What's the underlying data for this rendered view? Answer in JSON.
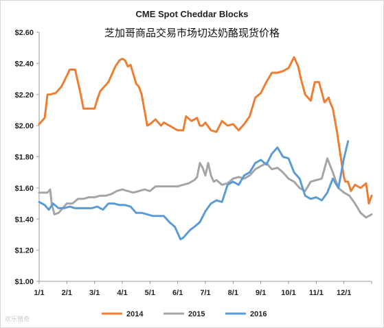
{
  "chart_data": {
    "type": "line",
    "title": "CME Spot Cheddar Blocks",
    "subtitle": "芝加哥商品交易市场切达奶酪现货价格",
    "xlabel": "",
    "ylabel": "",
    "ylim": [
      1.0,
      2.6
    ],
    "yticks": [
      "$1.00",
      "$1.20",
      "$1.40",
      "$1.60",
      "$1.80",
      "$2.00",
      "$2.20",
      "$2.40",
      "$2.60"
    ],
    "ytick_values": [
      1.0,
      1.2,
      1.4,
      1.6,
      1.8,
      2.0,
      2.2,
      2.4,
      2.6
    ],
    "xlim": [
      0,
      12
    ],
    "xticks": [
      "1/1",
      "2/1",
      "3/1",
      "4/1",
      "5/1",
      "6/1",
      "7/1",
      "8/1",
      "9/1",
      "10/1",
      "11/1",
      "12/1"
    ],
    "grid": false,
    "legend_position": "bottom",
    "series": [
      {
        "name": "2014",
        "color": "#ED7D31",
        "x": [
          0,
          0.1,
          0.2,
          0.3,
          0.4,
          0.6,
          0.8,
          1.0,
          1.1,
          1.2,
          1.3,
          1.5,
          1.6,
          1.8,
          2.0,
          2.1,
          2.2,
          2.35,
          2.5,
          2.6,
          2.75,
          2.9,
          3.0,
          3.1,
          3.2,
          3.3,
          3.5,
          3.6,
          3.7,
          3.8,
          3.9,
          4.0,
          4.2,
          4.4,
          4.5,
          4.7,
          4.9,
          5.0,
          5.2,
          5.3,
          5.5,
          5.7,
          5.8,
          5.9,
          6.0,
          6.2,
          6.4,
          6.6,
          6.8,
          7.0,
          7.2,
          7.4,
          7.6,
          7.8,
          8.0,
          8.2,
          8.4,
          8.6,
          8.8,
          9.0,
          9.2,
          9.35,
          9.45,
          9.6,
          9.8,
          9.95,
          10.1,
          10.3,
          10.45,
          10.5,
          10.6,
          10.75,
          10.9,
          11.0,
          11.05,
          11.15,
          11.25,
          11.4,
          11.6,
          11.8,
          11.9,
          12.0
        ],
        "values": [
          2.01,
          2.03,
          2.05,
          2.2,
          2.2,
          2.21,
          2.25,
          2.32,
          2.36,
          2.36,
          2.36,
          2.2,
          2.11,
          2.11,
          2.11,
          2.17,
          2.22,
          2.25,
          2.28,
          2.32,
          2.38,
          2.42,
          2.43,
          2.42,
          2.38,
          2.39,
          2.27,
          2.25,
          2.2,
          2.1,
          2.0,
          2.01,
          2.04,
          2.0,
          2.02,
          2.0,
          1.98,
          1.97,
          1.97,
          2.06,
          2.03,
          2.05,
          2.0,
          2.0,
          2.02,
          1.97,
          1.96,
          2.03,
          2.0,
          2.01,
          1.97,
          2.01,
          2.06,
          2.18,
          2.21,
          2.28,
          2.34,
          2.34,
          2.35,
          2.37,
          2.44,
          2.38,
          2.3,
          2.2,
          2.16,
          2.28,
          2.28,
          2.15,
          2.18,
          2.15,
          2.11,
          1.96,
          1.78,
          1.67,
          1.64,
          1.64,
          1.58,
          1.62,
          1.6,
          1.63,
          1.5,
          1.55
        ]
      },
      {
        "name": "2015",
        "color": "#A5A5A5",
        "x": [
          0,
          0.3,
          0.4,
          0.45,
          0.55,
          0.7,
          0.9,
          1.0,
          1.2,
          1.4,
          1.6,
          1.8,
          2.0,
          2.2,
          2.4,
          2.6,
          2.8,
          3.0,
          3.2,
          3.4,
          3.6,
          3.8,
          4.0,
          4.2,
          4.4,
          4.6,
          4.8,
          5.0,
          5.2,
          5.4,
          5.6,
          5.7,
          5.8,
          5.9,
          6.0,
          6.1,
          6.2,
          6.3,
          6.4,
          6.6,
          6.8,
          7.0,
          7.2,
          7.4,
          7.6,
          7.8,
          8.0,
          8.2,
          8.4,
          8.6,
          8.8,
          9.0,
          9.2,
          9.4,
          9.6,
          9.8,
          10.0,
          10.2,
          10.4,
          10.6,
          10.8,
          11.0,
          11.2,
          11.4,
          11.6,
          11.8,
          12.0
        ],
        "values": [
          1.57,
          1.57,
          1.59,
          1.5,
          1.43,
          1.44,
          1.48,
          1.5,
          1.5,
          1.53,
          1.53,
          1.54,
          1.54,
          1.55,
          1.55,
          1.56,
          1.58,
          1.59,
          1.58,
          1.57,
          1.58,
          1.59,
          1.58,
          1.61,
          1.61,
          1.61,
          1.61,
          1.61,
          1.62,
          1.63,
          1.65,
          1.67,
          1.76,
          1.73,
          1.68,
          1.76,
          1.68,
          1.64,
          1.65,
          1.62,
          1.63,
          1.66,
          1.67,
          1.66,
          1.68,
          1.72,
          1.74,
          1.76,
          1.72,
          1.73,
          1.7,
          1.66,
          1.64,
          1.6,
          1.58,
          1.64,
          1.65,
          1.66,
          1.79,
          1.7,
          1.6,
          1.57,
          1.55,
          1.5,
          1.44,
          1.41,
          1.43
        ]
      },
      {
        "name": "2016",
        "color": "#5B9BD5",
        "x": [
          0,
          0.2,
          0.35,
          0.5,
          0.7,
          0.9,
          1.1,
          1.3,
          1.5,
          1.7,
          1.9,
          2.1,
          2.3,
          2.5,
          2.7,
          2.9,
          3.1,
          3.3,
          3.5,
          3.7,
          3.9,
          4.1,
          4.3,
          4.5,
          4.7,
          4.9,
          5.0,
          5.1,
          5.2,
          5.3,
          5.45,
          5.6,
          5.8,
          6.0,
          6.2,
          6.4,
          6.6,
          6.8,
          7.0,
          7.2,
          7.4,
          7.6,
          7.8,
          8.0,
          8.2,
          8.4,
          8.6,
          8.8,
          9.0,
          9.2,
          9.4,
          9.6,
          9.8,
          10.0,
          10.2,
          10.4,
          10.6,
          10.8,
          11.0,
          11.15
        ],
        "values": [
          1.51,
          1.49,
          1.46,
          1.5,
          1.47,
          1.47,
          1.48,
          1.47,
          1.47,
          1.47,
          1.47,
          1.48,
          1.46,
          1.5,
          1.5,
          1.49,
          1.49,
          1.48,
          1.44,
          1.44,
          1.43,
          1.42,
          1.42,
          1.42,
          1.38,
          1.35,
          1.31,
          1.27,
          1.28,
          1.3,
          1.33,
          1.35,
          1.38,
          1.45,
          1.5,
          1.52,
          1.51,
          1.62,
          1.64,
          1.62,
          1.68,
          1.7,
          1.76,
          1.78,
          1.75,
          1.82,
          1.86,
          1.8,
          1.79,
          1.7,
          1.66,
          1.55,
          1.53,
          1.54,
          1.52,
          1.57,
          1.66,
          1.6,
          1.79,
          1.9
        ]
      }
    ]
  },
  "watermark": "欢乐猎奇"
}
